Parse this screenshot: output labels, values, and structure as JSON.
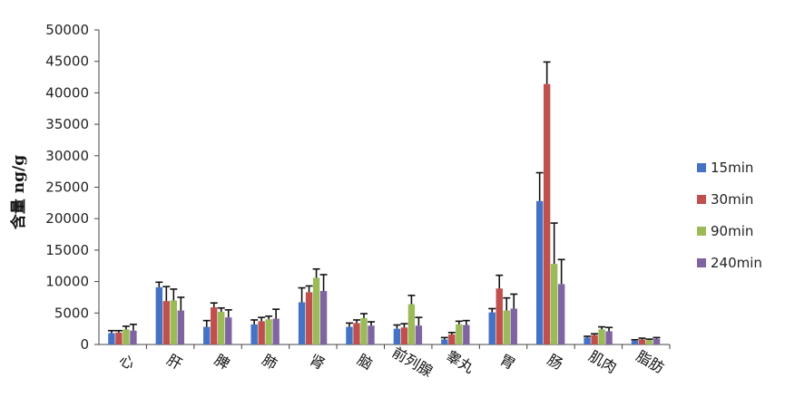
{
  "chart_data": {
    "type": "bar",
    "ylabel": "含量 ng/g",
    "ylim": [
      0,
      50000
    ],
    "yticks": [
      "50000",
      "45000",
      "40000",
      "35000",
      "30000",
      "25000",
      "20000",
      "15000",
      "10000",
      "5000",
      "0"
    ],
    "categories": [
      "心",
      "肝",
      "脾",
      "肺",
      "肾",
      "脑",
      "前列腺",
      "睾丸",
      "胃",
      "肠",
      "肌肉",
      "脂肪"
    ],
    "legend_position": "right",
    "error_bars": true,
    "series": [
      {
        "name": "15min",
        "color": "#4472C4",
        "values": [
          1800,
          9100,
          2800,
          3200,
          6700,
          2800,
          2500,
          800,
          5100,
          22800,
          1100,
          600
        ],
        "errors": [
          400,
          800,
          1000,
          700,
          2300,
          600,
          600,
          300,
          600,
          4500,
          200,
          150
        ]
      },
      {
        "name": "30min",
        "color": "#C0504D",
        "values": [
          1900,
          6900,
          5900,
          3700,
          8300,
          3400,
          2700,
          1600,
          8900,
          41400,
          1500,
          800
        ],
        "errors": [
          300,
          2300,
          700,
          600,
          1000,
          500,
          600,
          300,
          2100,
          3500,
          200,
          200
        ]
      },
      {
        "name": "90min",
        "color": "#9BBB59",
        "values": [
          2400,
          7000,
          5200,
          4000,
          10600,
          4200,
          6400,
          3200,
          5400,
          12800,
          2400,
          700
        ],
        "errors": [
          500,
          1800,
          600,
          500,
          1400,
          700,
          1400,
          500,
          2000,
          6500,
          400,
          150
        ]
      },
      {
        "name": "240min",
        "color": "#8064A2",
        "values": [
          2200,
          5400,
          4300,
          4100,
          8500,
          3000,
          3000,
          3100,
          5700,
          9600,
          2100,
          900
        ],
        "errors": [
          1000,
          2100,
          1200,
          1500,
          2600,
          600,
          1300,
          700,
          2300,
          3900,
          600,
          200
        ]
      }
    ]
  }
}
